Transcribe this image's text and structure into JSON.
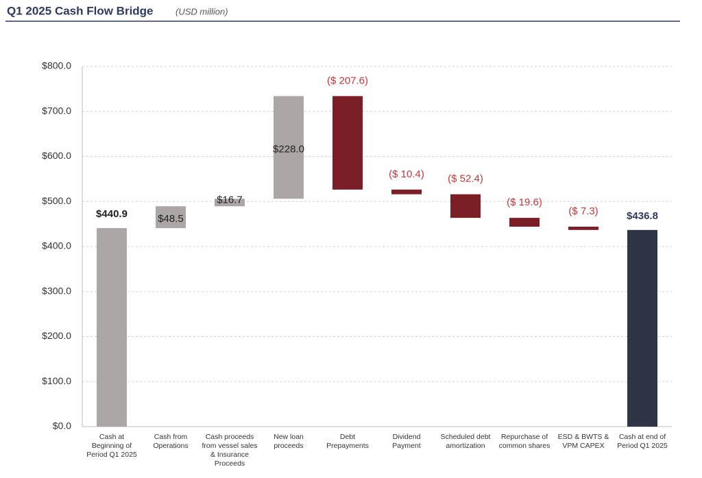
{
  "chart_data": {
    "type": "waterfall",
    "title": "Q1 2025 Cash Flow Bridge",
    "subtitle": "(USD million)",
    "categories": [
      "Cash at Beginning of Period Q1 2025",
      "Cash from Operations",
      "Cash proceeds from vessel sales & Insurance Proceeds",
      "New loan proceeds",
      "Debt Prepayments",
      "Dividend Payment",
      "Scheduled debt amortization",
      "Repurchase of common shares",
      "ESD & BWTS & VPM CAPEX",
      "Cash at end of Period Q1 2025"
    ],
    "values": [
      440.9,
      48.5,
      16.7,
      228.0,
      -207.6,
      -10.4,
      -52.4,
      -19.6,
      -7.3,
      436.8
    ],
    "value_labels": [
      "$440.9",
      "$48.5",
      "$16.7",
      "$228.0",
      "($ 207.6)",
      "($ 10.4)",
      "($ 52.4)",
      "($ 19.6)",
      "($ 7.3)",
      "$436.8"
    ],
    "colors": [
      "#aca7a6",
      "#aca7a6",
      "#aca7a6",
      "#aca7a6",
      "#7b1e25",
      "#7b1e25",
      "#7b1e25",
      "#7b1e25",
      "#7b1e25",
      "#2e3547"
    ],
    "ylim": [
      0,
      800
    ],
    "yticks": [
      {
        "value": 0,
        "label": "$0.0"
      },
      {
        "value": 100,
        "label": "$100.0"
      },
      {
        "value": 200,
        "label": "$200.0"
      },
      {
        "value": 300,
        "label": "$300.0"
      },
      {
        "value": 400,
        "label": "$400.0"
      },
      {
        "value": 500,
        "label": "$500.0"
      },
      {
        "value": 600,
        "label": "$600.0"
      },
      {
        "value": 700,
        "label": "$700.0"
      },
      {
        "value": 800,
        "label": "$800.0"
      }
    ],
    "grid": true
  }
}
